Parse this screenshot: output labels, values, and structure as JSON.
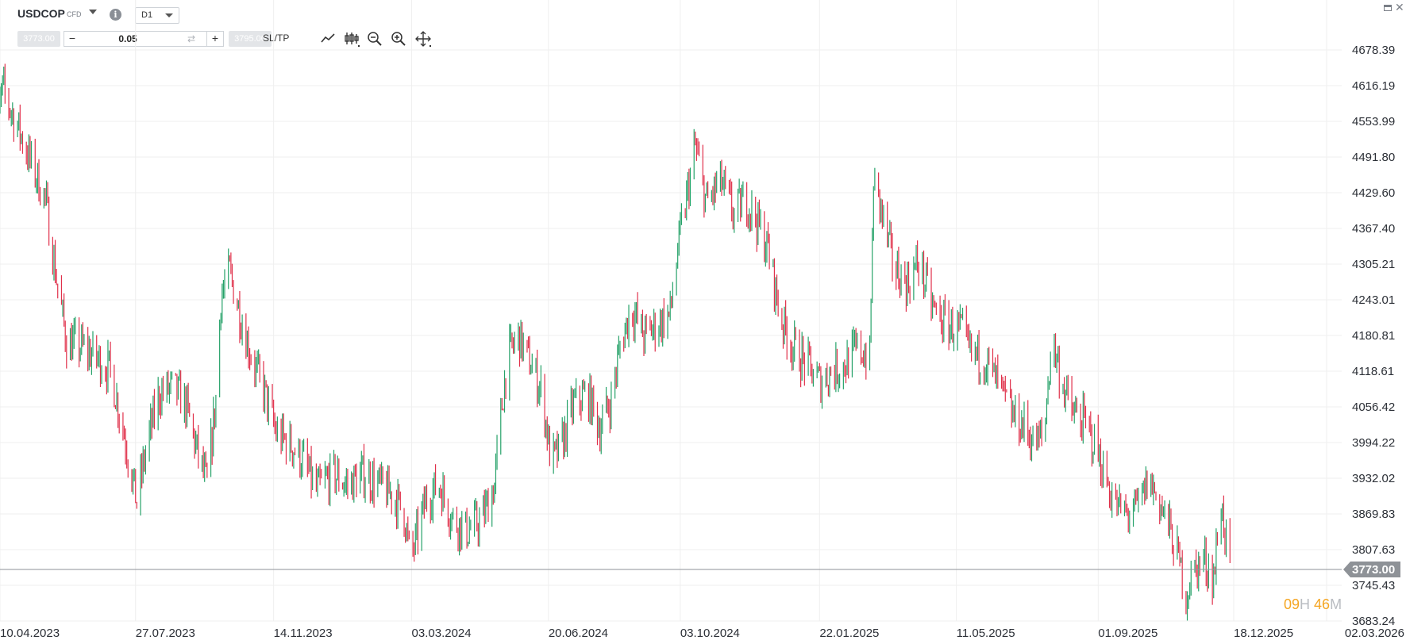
{
  "header": {
    "symbol": "USDCOP",
    "symbol_sub": "CFD",
    "timeframe": "D1"
  },
  "order": {
    "sell_price": "3773.00",
    "buy_price": "3795.00",
    "quantity": "0.05",
    "minus": "−",
    "plus": "+",
    "sltp_label": "SL/TP"
  },
  "countdown": {
    "hours": "09",
    "hours_unit": "H",
    "minutes": "46",
    "minutes_unit": "M"
  },
  "colors": {
    "up": "#26a269",
    "down": "#e0314b",
    "grid": "#efefef",
    "last_price": "#8e9297"
  },
  "chart_data": {
    "type": "ohlc",
    "symbol": "USDCOP",
    "timeframe": "D1",
    "last_price": 3773.0,
    "ylim": [
      3683.24,
      4678.39
    ],
    "y_ticks": [
      4678.39,
      4616.19,
      4553.99,
      4491.8,
      4429.6,
      4367.4,
      4305.21,
      4243.01,
      4180.81,
      4118.61,
      4056.42,
      3994.22,
      3932.02,
      3869.83,
      3807.63,
      3745.43,
      3683.24
    ],
    "y_tick_labels": [
      "4678.39",
      "4616.19",
      "4553.99",
      "4491.80",
      "4429.60",
      "4367.40",
      "4305.21",
      "4243.01",
      "4180.81",
      "4118.61",
      "4056.42",
      "3994.22",
      "3932.02",
      "3869.83",
      "3807.63",
      "3745.43",
      "3683.24"
    ],
    "x_tick_labels": [
      "10.04.2023",
      "27.07.2023",
      "14.11.2023",
      "03.03.2024",
      "20.06.2024",
      "03.10.2024",
      "22.01.2025",
      "11.05.2025",
      "01.09.2025",
      "18.12.2025",
      "02.03.2026"
    ],
    "x_dates": [
      "2023-04-10",
      "2023-07-27",
      "2023-11-14",
      "2024-03-03",
      "2024-06-20",
      "2024-10-03",
      "2025-01-22",
      "2025-05-11",
      "2025-09-01",
      "2025-12-18",
      "2026-03-02"
    ],
    "close_path": [
      [
        "2023-04-01",
        4470
      ],
      [
        "2023-04-12",
        4610
      ],
      [
        "2023-04-25",
        4540
      ],
      [
        "2023-05-05",
        4480
      ],
      [
        "2023-05-16",
        4420
      ],
      [
        "2023-05-25",
        4280
      ],
      [
        "2023-06-02",
        4170
      ],
      [
        "2023-06-15",
        4160
      ],
      [
        "2023-06-27",
        4140
      ],
      [
        "2023-07-07",
        4120
      ],
      [
        "2023-07-17",
        4020
      ],
      [
        "2023-07-28",
        3890
      ],
      [
        "2023-08-05",
        3990
      ],
      [
        "2023-08-15",
        4080
      ],
      [
        "2023-08-26",
        4090
      ],
      [
        "2023-09-05",
        4060
      ],
      [
        "2023-09-15",
        3970
      ],
      [
        "2023-09-22",
        3920
      ],
      [
        "2023-09-29",
        4070
      ],
      [
        "2023-10-03",
        4250
      ],
      [
        "2023-10-10",
        4290
      ],
      [
        "2023-10-17",
        4230
      ],
      [
        "2023-10-24",
        4170
      ],
      [
        "2023-10-31",
        4120
      ],
      [
        "2023-11-07",
        4080
      ],
      [
        "2023-11-16",
        4010
      ],
      [
        "2023-11-28",
        3990
      ],
      [
        "2023-12-08",
        3960
      ],
      [
        "2023-12-18",
        3910
      ],
      [
        "2023-12-31",
        3940
      ],
      [
        "2024-01-12",
        3920
      ],
      [
        "2024-01-25",
        3940
      ],
      [
        "2024-02-06",
        3920
      ],
      [
        "2024-02-18",
        3900
      ],
      [
        "2024-02-26",
        3870
      ],
      [
        "2024-03-02",
        3790
      ],
      [
        "2024-03-06",
        3820
      ],
      [
        "2024-03-15",
        3900
      ],
      [
        "2024-03-25",
        3920
      ],
      [
        "2024-04-05",
        3860
      ],
      [
        "2024-04-16",
        3840
      ],
      [
        "2024-04-28",
        3860
      ],
      [
        "2024-05-08",
        3920
      ],
      [
        "2024-05-13",
        4040
      ],
      [
        "2024-05-18",
        4140
      ],
      [
        "2024-05-27",
        4180
      ],
      [
        "2024-06-06",
        4130
      ],
      [
        "2024-06-15",
        4080
      ],
      [
        "2024-06-22",
        3960
      ],
      [
        "2024-06-29",
        3980
      ],
      [
        "2024-07-10",
        4060
      ],
      [
        "2024-07-21",
        4080
      ],
      [
        "2024-07-31",
        4020
      ],
      [
        "2024-08-09",
        4070
      ],
      [
        "2024-08-16",
        4160
      ],
      [
        "2024-08-25",
        4230
      ],
      [
        "2024-09-04",
        4180
      ],
      [
        "2024-09-15",
        4200
      ],
      [
        "2024-09-25",
        4220
      ],
      [
        "2024-10-01",
        4330
      ],
      [
        "2024-10-08",
        4420
      ],
      [
        "2024-10-15",
        4510
      ],
      [
        "2024-10-24",
        4410
      ],
      [
        "2024-11-04",
        4450
      ],
      [
        "2024-11-15",
        4390
      ],
      [
        "2024-11-24",
        4420
      ],
      [
        "2024-12-03",
        4380
      ],
      [
        "2024-12-12",
        4330
      ],
      [
        "2024-12-22",
        4210
      ],
      [
        "2025-01-01",
        4160
      ],
      [
        "2025-01-12",
        4130
      ],
      [
        "2025-01-22",
        4100
      ],
      [
        "2025-02-01",
        4120
      ],
      [
        "2025-02-11",
        4130
      ],
      [
        "2025-02-22",
        4160
      ],
      [
        "2025-03-03",
        4140
      ],
      [
        "2025-03-06",
        4450
      ],
      [
        "2025-03-12",
        4400
      ],
      [
        "2025-03-22",
        4300
      ],
      [
        "2025-04-02",
        4270
      ],
      [
        "2025-04-11",
        4310
      ],
      [
        "2025-04-22",
        4230
      ],
      [
        "2025-05-02",
        4200
      ],
      [
        "2025-05-14",
        4190
      ],
      [
        "2025-05-22",
        4150
      ],
      [
        "2025-06-03",
        4140
      ],
      [
        "2025-06-14",
        4090
      ],
      [
        "2025-06-25",
        4040
      ],
      [
        "2025-07-05",
        4020
      ],
      [
        "2025-07-13",
        3990
      ],
      [
        "2025-07-20",
        4010
      ],
      [
        "2025-07-26",
        4180
      ],
      [
        "2025-08-02",
        4110
      ],
      [
        "2025-08-10",
        4050
      ],
      [
        "2025-08-20",
        4030
      ],
      [
        "2025-08-30",
        3990
      ],
      [
        "2025-09-07",
        3930
      ],
      [
        "2025-09-16",
        3880
      ],
      [
        "2025-09-24",
        3870
      ],
      [
        "2025-10-03",
        3880
      ],
      [
        "2025-10-11",
        3930
      ],
      [
        "2025-10-18",
        3900
      ],
      [
        "2025-10-27",
        3850
      ],
      [
        "2025-11-04",
        3790
      ],
      [
        "2025-11-10",
        3730
      ],
      [
        "2025-11-16",
        3770
      ],
      [
        "2025-11-24",
        3790
      ],
      [
        "2025-12-02",
        3760
      ],
      [
        "2025-12-08",
        3890
      ],
      [
        "2025-12-12",
        3820
      ],
      [
        "2025-12-15",
        3773
      ]
    ]
  }
}
